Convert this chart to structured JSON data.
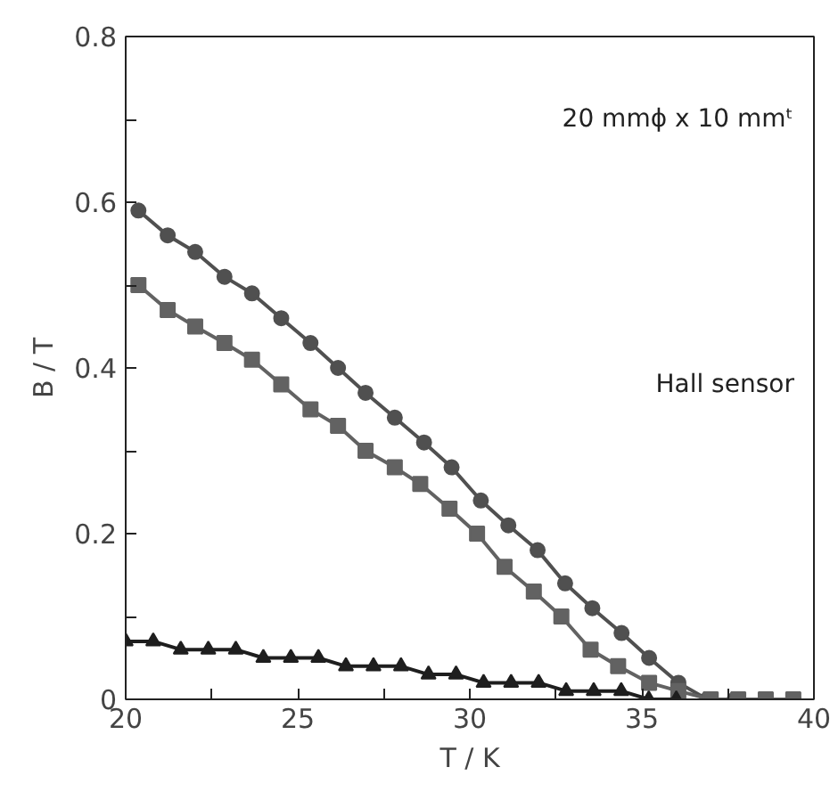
{
  "chart_data": {
    "type": "line",
    "xlabel": "T / K",
    "ylabel": "B / T",
    "xlim": [
      20,
      40
    ],
    "ylim": [
      0,
      0.8
    ],
    "xticks": [
      20,
      {
        "value": 22.5,
        "label": null
      },
      25,
      {
        "value": 27.5,
        "label": null
      },
      30,
      {
        "value": 32.5,
        "label": null
      },
      35,
      {
        "value": 37.5,
        "label": null
      },
      40
    ],
    "yticks": [
      {
        "value": 0,
        "label": "0"
      },
      {
        "value": 0.1,
        "label": null
      },
      0.2,
      {
        "value": 0.3,
        "label": null
      },
      0.4,
      {
        "value": 0.5,
        "label": null
      },
      0.6,
      {
        "value": 0.7,
        "label": null
      },
      0.8
    ],
    "grid": false,
    "line_style": "solid",
    "annotations": [
      "20 mmϕ x 10 mmᵗ",
      "Hall sensor"
    ],
    "series": [
      {
        "color": "#505050",
        "marker": "circle",
        "x": [
          20.37,
          21.22,
          22.02,
          22.87,
          23.67,
          24.52,
          25.37,
          26.17,
          26.97,
          27.82,
          28.67,
          29.47,
          30.32,
          31.12,
          31.97,
          32.77,
          33.56,
          34.41,
          35.21,
          36.06,
          36.9,
          37.7,
          38.6,
          39.4
        ],
        "values": [
          0.59,
          0.56,
          0.54,
          0.51,
          0.49,
          0.46,
          0.43,
          0.4,
          0.37,
          0.34,
          0.31,
          0.28,
          0.24,
          0.21,
          0.18,
          0.14,
          0.11,
          0.08,
          0.05,
          0.02,
          0.0,
          0.0,
          0.0,
          0.0
        ]
      },
      {
        "color": "#626262",
        "marker": "square",
        "x": [
          20.37,
          21.22,
          22.02,
          22.87,
          23.67,
          24.52,
          25.37,
          26.17,
          26.97,
          27.82,
          28.56,
          29.41,
          30.21,
          31.01,
          31.86,
          32.66,
          33.51,
          34.31,
          35.21,
          36.06,
          37.0,
          37.8,
          38.6,
          39.4
        ],
        "values": [
          0.5,
          0.47,
          0.45,
          0.43,
          0.41,
          0.38,
          0.35,
          0.33,
          0.3,
          0.28,
          0.26,
          0.23,
          0.2,
          0.16,
          0.13,
          0.1,
          0.06,
          0.04,
          0.02,
          0.01,
          0.0,
          0.0,
          0.0,
          0.0
        ]
      },
      {
        "color": "#1e1e1e",
        "marker": "triangle",
        "x": [
          20.0,
          20.8,
          21.6,
          22.4,
          23.2,
          24.0,
          24.8,
          25.6,
          26.4,
          27.2,
          28.0,
          28.8,
          29.6,
          30.4,
          31.2,
          32.0,
          32.8,
          33.6,
          34.4,
          35.2,
          36.0
        ],
        "values": [
          0.07,
          0.07,
          0.06,
          0.06,
          0.06,
          0.05,
          0.05,
          0.05,
          0.04,
          0.04,
          0.04,
          0.03,
          0.03,
          0.02,
          0.02,
          0.02,
          0.01,
          0.01,
          0.01,
          0.0,
          0.0
        ]
      }
    ]
  }
}
